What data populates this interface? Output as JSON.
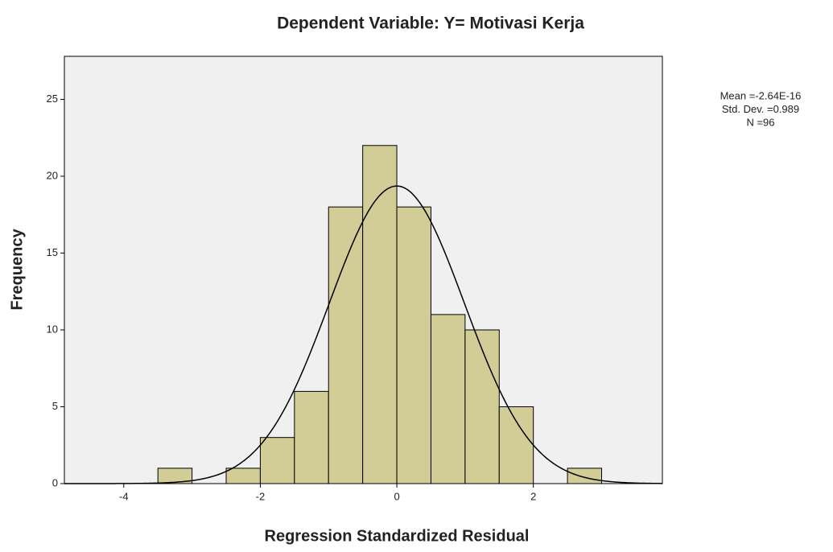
{
  "chart_data": {
    "type": "histogram",
    "title": "Dependent Variable: Y= Motivasi Kerja",
    "xlabel": "Regression Standardized Residual",
    "ylabel": "Frequency",
    "bins": [
      -3.5,
      -3.0,
      -2.5,
      -2.0,
      -1.5,
      -1.0,
      -0.5,
      0.0,
      0.5,
      1.0,
      1.5,
      2.0,
      2.5,
      3.0
    ],
    "values": [
      1,
      0,
      1,
      3,
      6,
      18,
      22,
      18,
      11,
      10,
      5,
      0,
      1
    ],
    "color": "#d2cc97",
    "background": "#f0f0f0",
    "xlim": [
      -4.87,
      3.89
    ],
    "xticks": [
      -4,
      -2,
      0,
      2
    ],
    "ylim": [
      0,
      27.8
    ],
    "yticks": [
      0,
      5,
      10,
      15,
      20,
      25
    ],
    "stats": [
      {
        "value": -2.64e-16,
        "label": "Mean =-2.64E-16"
      },
      {
        "value": 0.989,
        "label": "Std. Dev. =0.989"
      },
      {
        "value": 96,
        "label": "N =96"
      }
    ]
  }
}
